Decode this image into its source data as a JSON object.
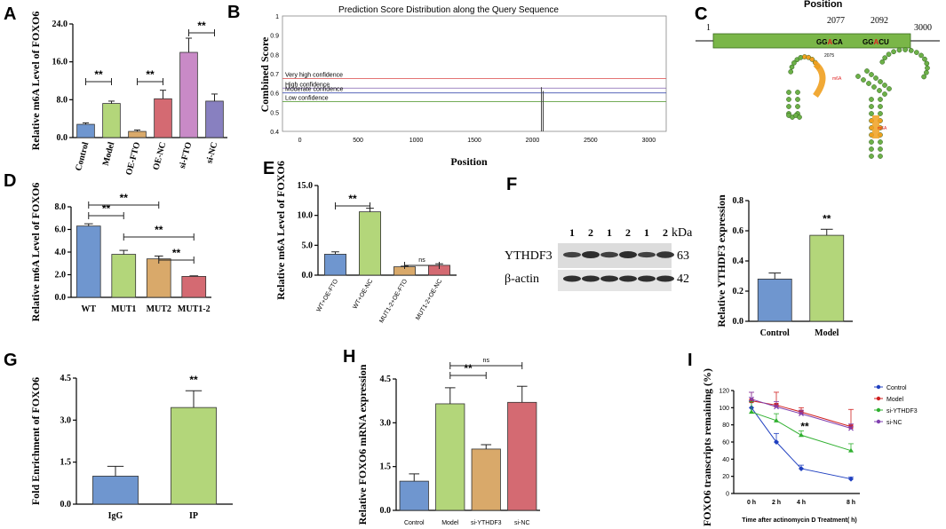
{
  "figure": {
    "panel_labels": {
      "A": "A",
      "B": "B",
      "C": "C",
      "D": "D",
      "E": "E",
      "F": "F",
      "G": "G",
      "H": "H",
      "I": "I"
    }
  },
  "colors": {
    "blue": "#6f96cf",
    "green": "#b3d67a",
    "orange": "#d9a96a",
    "pink": "#c98ac7",
    "purple": "#8880c0",
    "red": "#d46a72",
    "darkred": "#b85a68"
  },
  "chart_data": [
    {
      "id": "A",
      "type": "bar",
      "categories": [
        "Control",
        "Model",
        "OE-FTO",
        "OE-NC",
        "si-FTO",
        "si-NC"
      ],
      "values": [
        2.8,
        7.2,
        1.3,
        8.2,
        18.0,
        7.7
      ],
      "errors": [
        0.3,
        0.5,
        0.3,
        1.8,
        3.0,
        1.5
      ],
      "ylabel": "Relative m6A Level of FOXO6",
      "ylim": [
        0,
        24
      ],
      "yticks": [
        "0.0",
        "8.0",
        "16.0",
        "24.0"
      ],
      "significance": [
        {
          "from": 0,
          "to": 1,
          "label": "**"
        },
        {
          "from": 2,
          "to": 3,
          "label": "**"
        },
        {
          "from": 4,
          "to": 5,
          "label": "**"
        }
      ]
    },
    {
      "id": "B",
      "type": "line",
      "title": "Prediction Score Distribution along the Query Sequence",
      "xlabel": "Position",
      "ylabel": "Combined Score",
      "xlim": [
        -150,
        3150
      ],
      "ylim": [
        0.4,
        1.0
      ],
      "xticks": [
        "0",
        "500",
        "1000",
        "1500",
        "2000",
        "2500",
        "3000"
      ],
      "yticks": [
        "0.4",
        "0.5",
        "0.6",
        "0.7",
        "0.8",
        "0.9",
        "1"
      ],
      "thresholds": [
        {
          "name": "Very high confidence",
          "value": 0.675,
          "color": "#e06060"
        },
        {
          "name": "High confidence",
          "value": 0.625,
          "color": "#8060b0"
        },
        {
          "name": "Moderate confidence",
          "value": 0.6,
          "color": "#4050b0"
        },
        {
          "name": "Low confidence",
          "value": 0.555,
          "color": "#60a040"
        }
      ],
      "peaks": [
        {
          "x": 2077,
          "y": 0.63
        },
        {
          "x": 2092,
          "y": 0.61
        }
      ]
    },
    {
      "id": "C",
      "type": "table",
      "title": "Position",
      "start": "1",
      "end": "3000",
      "sites": [
        {
          "pos": "2077",
          "motif_pre": "GG",
          "motif_a": "A",
          "motif_post": "CA"
        },
        {
          "pos": "2092",
          "motif_pre": "GG",
          "motif_a": "A",
          "motif_post": "CU"
        }
      ],
      "loop_label": "2075",
      "mark_label": "m6A"
    },
    {
      "id": "D",
      "type": "bar",
      "categories": [
        "WT",
        "MUT1",
        "MUT2",
        "MUT1-2"
      ],
      "values": [
        6.3,
        3.8,
        3.4,
        1.85
      ],
      "errors": [
        0.2,
        0.35,
        0.25,
        0.05
      ],
      "ylabel": "Relative m6A Level of FOXO6",
      "ylim": [
        0,
        8
      ],
      "yticks": [
        "0.0",
        "2.0",
        "4.0",
        "6.0",
        "8.0"
      ],
      "significance": [
        {
          "from": 0,
          "to": 1,
          "label": "**"
        },
        {
          "from": 0,
          "to": 2,
          "label": "**"
        },
        {
          "from": 1,
          "to": 3,
          "label": "**"
        },
        {
          "from": 2,
          "to": 3,
          "label": "**"
        }
      ]
    },
    {
      "id": "E",
      "type": "bar",
      "categories": [
        "WT+OE-FTO",
        "WT+OE-NC",
        "MUT1-2+OE-FTO",
        "MUT1-2+OE-NC"
      ],
      "values": [
        3.5,
        10.6,
        1.4,
        1.65
      ],
      "errors": [
        0.4,
        0.6,
        0.1,
        0.25
      ],
      "ylabel": "Relative m6A Level of FOXO6",
      "ylim": [
        0,
        15
      ],
      "yticks": [
        "0.0",
        "5.0",
        "10.0",
        "15.0"
      ],
      "significance": [
        {
          "from": 0,
          "to": 1,
          "label": "**"
        },
        {
          "from": 2,
          "to": 3,
          "label": "ns"
        }
      ]
    },
    {
      "id": "F-blot",
      "type": "table",
      "lanes": [
        "1",
        "2",
        "1",
        "2",
        "1",
        "2"
      ],
      "unit": "kDa",
      "rows": [
        {
          "name": "YTHDF3",
          "kda": "63"
        },
        {
          "name": "β-actin",
          "kda": "42"
        }
      ]
    },
    {
      "id": "F",
      "type": "bar",
      "categories": [
        "Control",
        "Model"
      ],
      "values": [
        0.28,
        0.57
      ],
      "errors": [
        0.04,
        0.04
      ],
      "ylabel": "Relative YTHDF3 expression",
      "ylim": [
        0,
        0.8
      ],
      "yticks": [
        "0.0",
        "0.2",
        "0.4",
        "0.6",
        "0.8"
      ],
      "significance": [
        {
          "at": 1,
          "label": "**"
        }
      ]
    },
    {
      "id": "G",
      "type": "bar",
      "categories": [
        "IgG",
        "IP"
      ],
      "values": [
        1.0,
        3.45
      ],
      "errors": [
        0.35,
        0.6
      ],
      "ylabel": "Fold Enrichment of FOXO6",
      "ylim": [
        0,
        4.5
      ],
      "yticks": [
        "0.0",
        "1.5",
        "3.0",
        "4.5"
      ],
      "significance": [
        {
          "at": 1,
          "label": "**"
        }
      ]
    },
    {
      "id": "H",
      "type": "bar",
      "categories": [
        "Control",
        "Model",
        "si-YTHDF3",
        "si-NC"
      ],
      "values": [
        1.0,
        3.65,
        2.1,
        3.7
      ],
      "errors": [
        0.25,
        0.55,
        0.15,
        0.55
      ],
      "ylabel": "Relative FOXO6 mRNA expression",
      "ylim": [
        0,
        4.5
      ],
      "yticks": [
        "0.0",
        "1.5",
        "3.0",
        "4.5"
      ],
      "significance": [
        {
          "from": 1,
          "to": 2,
          "label": "**"
        },
        {
          "from": 1,
          "to": 3,
          "label": "ns"
        }
      ]
    },
    {
      "id": "I",
      "type": "line",
      "x": [
        0,
        2,
        4,
        8
      ],
      "xticks": [
        "0 h",
        "2 h",
        "4 h",
        "8 h"
      ],
      "xlabel": "Time after actinomycin D Treatment( h)",
      "ylabel": "FOXO6  transcripts remaining (%)",
      "ylim": [
        0,
        120
      ],
      "yticks": [
        "0",
        "20",
        "40",
        "60",
        "80",
        "100",
        "120"
      ],
      "series": [
        {
          "name": "Control",
          "values": [
            100,
            60,
            29,
            17
          ],
          "errors": [
            8,
            10,
            4,
            2
          ],
          "color": "#2040c0",
          "marker": "diamond"
        },
        {
          "name": "Model",
          "values": [
            108,
            103,
            95,
            78
          ],
          "errors": [
            10,
            15,
            5,
            20
          ],
          "color": "#d02020",
          "marker": "square"
        },
        {
          "name": "si-YTHDF3",
          "values": [
            95,
            85,
            68,
            50
          ],
          "errors": [
            12,
            8,
            5,
            8
          ],
          "color": "#30b030",
          "marker": "triangle"
        },
        {
          "name": "si-NC",
          "values": [
            110,
            101,
            93,
            76
          ],
          "errors": [
            8,
            6,
            4,
            5
          ],
          "color": "#8040b0",
          "marker": "x"
        }
      ],
      "annotation": "**"
    }
  ]
}
